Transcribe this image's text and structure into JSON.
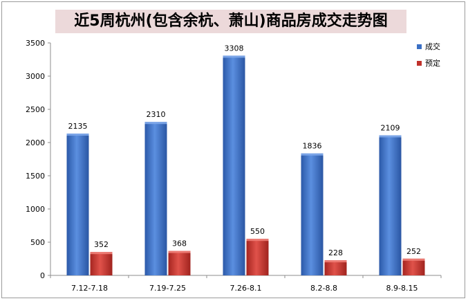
{
  "chart_data": {
    "type": "bar",
    "title": "近5周杭州(包含余杭、萧山)商品房成交走势图",
    "categories": [
      "7.12-7.18",
      "7.19-7.25",
      "7.26-8.1",
      "8.2-8.8",
      "8.9-8.15"
    ],
    "series": [
      {
        "name": "成交",
        "values": [
          2135,
          2310,
          3308,
          1836,
          2109
        ],
        "color": "#3a6fc4"
      },
      {
        "name": "预定",
        "values": [
          352,
          368,
          550,
          228,
          252
        ],
        "color": "#c0312b"
      }
    ],
    "ylim": [
      0,
      3500
    ],
    "yticks": [
      0,
      500,
      1000,
      1500,
      2000,
      2500,
      3000,
      3500
    ],
    "xlabel": "",
    "ylabel": "",
    "legend": "top-right",
    "grid": false,
    "data_labels": true
  }
}
